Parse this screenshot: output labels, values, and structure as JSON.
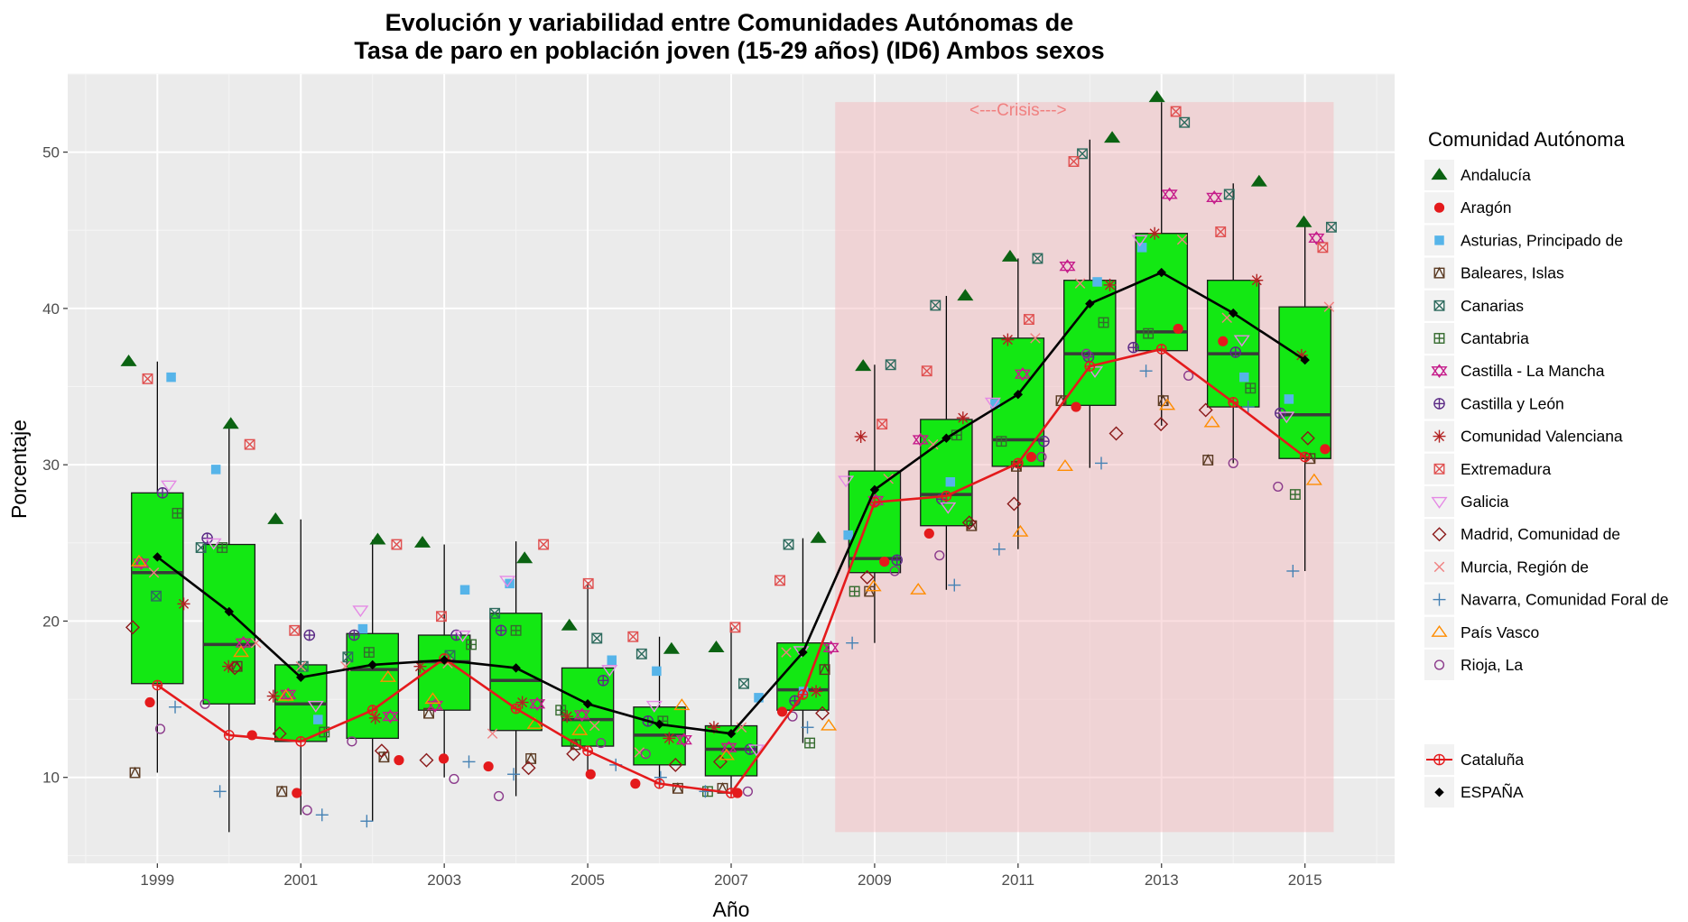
{
  "chart_data": {
    "type": "boxplot",
    "title": "Evolución y variabilidad entre Comunidades Autónomas de",
    "subtitle": "Tasa de paro en población joven (15-29 años) (ID6) Ambos sexos",
    "xlabel": "Año",
    "ylabel": "Porcentaje",
    "x_ticks": [
      "1999",
      "2001",
      "2003",
      "2005",
      "2007",
      "2009",
      "2011",
      "2013",
      "2015"
    ],
    "y_ticks": [
      "10",
      "20",
      "30",
      "40",
      "50"
    ],
    "xlim": [
      1997.75,
      2016.25
    ],
    "ylim": [
      4.5,
      55
    ],
    "grid": true,
    "annotation": {
      "text": "<---Crisis--->",
      "x_range": [
        2008.45,
        2015.4
      ],
      "y_range": [
        6.5,
        53.2
      ]
    },
    "years": [
      1999,
      2000,
      2001,
      2002,
      2003,
      2004,
      2005,
      2006,
      2007,
      2008,
      2009,
      2010,
      2011,
      2012,
      2013,
      2014,
      2015
    ],
    "boxes": [
      {
        "year": 1999,
        "lower_whisker": 10.3,
        "q1": 16.0,
        "median": 23.1,
        "q3": 28.2,
        "upper_whisker": 36.6
      },
      {
        "year": 2000,
        "lower_whisker": 6.5,
        "q1": 14.7,
        "median": 18.5,
        "q3": 24.9,
        "upper_whisker": 32.5
      },
      {
        "year": 2001,
        "lower_whisker": 7.6,
        "q1": 12.3,
        "median": 14.7,
        "q3": 17.2,
        "upper_whisker": 26.5
      },
      {
        "year": 2002,
        "lower_whisker": 7.2,
        "q1": 12.5,
        "median": 16.9,
        "q3": 19.2,
        "upper_whisker": 25.2
      },
      {
        "year": 2003,
        "lower_whisker": 10.0,
        "q1": 14.3,
        "median": 17.4,
        "q3": 19.1,
        "upper_whisker": 24.9
      },
      {
        "year": 2004,
        "lower_whisker": 8.8,
        "q1": 13.0,
        "median": 16.2,
        "q3": 20.5,
        "upper_whisker": 25.1
      },
      {
        "year": 2005,
        "lower_whisker": 10.3,
        "q1": 12.0,
        "median": 13.7,
        "q3": 17.0,
        "upper_whisker": 22.5
      },
      {
        "year": 2006,
        "lower_whisker": 9.3,
        "q1": 10.8,
        "median": 12.7,
        "q3": 14.5,
        "upper_whisker": 19.0
      },
      {
        "year": 2007,
        "lower_whisker": 8.8,
        "q1": 10.1,
        "median": 11.8,
        "q3": 13.3,
        "upper_whisker": 19.6
      },
      {
        "year": 2008,
        "lower_whisker": 12.2,
        "q1": 14.3,
        "median": 15.6,
        "q3": 18.6,
        "upper_whisker": 25.3
      },
      {
        "year": 2009,
        "lower_whisker": 18.6,
        "q1": 23.1,
        "median": 24.0,
        "q3": 29.6,
        "upper_whisker": 36.4
      },
      {
        "year": 2010,
        "lower_whisker": 22.0,
        "q1": 26.1,
        "median": 28.1,
        "q3": 32.9,
        "upper_whisker": 40.8
      },
      {
        "year": 2011,
        "lower_whisker": 24.6,
        "q1": 29.9,
        "median": 31.6,
        "q3": 38.1,
        "upper_whisker": 43.2
      },
      {
        "year": 2012,
        "lower_whisker": 29.8,
        "q1": 33.8,
        "median": 37.1,
        "q3": 41.8,
        "upper_whisker": 50.8
      },
      {
        "year": 2013,
        "lower_whisker": 32.5,
        "q1": 37.3,
        "median": 38.5,
        "q3": 44.8,
        "upper_whisker": 53.2
      },
      {
        "year": 2014,
        "lower_whisker": 30.1,
        "q1": 33.7,
        "median": 37.1,
        "q3": 41.8,
        "upper_whisker": 48.0
      },
      {
        "year": 2015,
        "lower_whisker": 23.2,
        "q1": 30.4,
        "median": 33.2,
        "q3": 40.1,
        "upper_whisker": 45.5
      }
    ],
    "lines": [
      {
        "name": "ESPAÑA",
        "color": "#000000",
        "marker": "diamond",
        "values": [
          24.1,
          20.6,
          16.4,
          17.2,
          17.5,
          17.0,
          14.7,
          13.4,
          12.8,
          18.0,
          28.4,
          31.7,
          34.5,
          40.3,
          42.3,
          39.7,
          36.7
        ]
      },
      {
        "name": "Cataluña",
        "color": "#e41a1c",
        "marker": "circle-plus",
        "values": [
          15.9,
          12.7,
          12.3,
          14.3,
          17.6,
          14.4,
          11.7,
          9.6,
          9.0,
          15.3,
          27.6,
          28.0,
          30.1,
          36.3,
          37.4,
          34.0,
          30.5
        ]
      }
    ],
    "legend_title": "Comunidad Autónoma",
    "legend": [
      {
        "name": "Andalucía",
        "shape": "triangle",
        "color": "#0b6312"
      },
      {
        "name": "Aragón",
        "shape": "circle-filled",
        "color": "#e41a1c"
      },
      {
        "name": "Asturias, Principado de",
        "shape": "square-filled",
        "color": "#56b4e9"
      },
      {
        "name": "Baleares, Islas",
        "shape": "square-triangle",
        "color": "#5a3a22"
      },
      {
        "name": "Canarias",
        "shape": "square-x",
        "color": "#2e6b5e"
      },
      {
        "name": "Cantabria",
        "shape": "square-plus",
        "color": "#356b2e"
      },
      {
        "name": "Castilla - La Mancha",
        "shape": "star-david",
        "color": "#c51b8a"
      },
      {
        "name": "Castilla y León",
        "shape": "circle-plus",
        "color": "#5b2a86"
      },
      {
        "name": "Comunidad Valenciana",
        "shape": "asterisk",
        "color": "#b22222"
      },
      {
        "name": "Extremadura",
        "shape": "square-x",
        "color": "#e05050"
      },
      {
        "name": "Galicia",
        "shape": "triangle-down",
        "color": "#e58ae5"
      },
      {
        "name": "Madrid, Comunidad de",
        "shape": "diamond-open",
        "color": "#8b1a1a"
      },
      {
        "name": "Murcia, Región de",
        "shape": "x",
        "color": "#f08080"
      },
      {
        "name": "Navarra, Comunidad Foral de",
        "shape": "plus",
        "color": "#4682b4"
      },
      {
        "name": "País Vasco",
        "shape": "triangle-open",
        "color": "#ff8c00"
      },
      {
        "name": "Rioja, La",
        "shape": "circle-open",
        "color": "#8b3a8b"
      }
    ],
    "legend_extra": [
      {
        "name": "Cataluña",
        "shape": "circle-plus",
        "color": "#e41a1c"
      },
      {
        "name": "ESPAÑA",
        "shape": "diamond-filled",
        "color": "#000000"
      }
    ],
    "region_points": {
      "Andalucía": [
        36.6,
        32.6,
        26.5,
        25.2,
        25.0,
        24.0,
        19.7,
        18.2,
        18.3,
        25.3,
        36.3,
        40.8,
        43.3,
        50.9,
        53.5,
        48.1,
        45.5
      ],
      "Aragón": [
        14.8,
        12.7,
        9.0,
        11.1,
        11.2,
        10.7,
        10.2,
        9.6,
        9.0,
        14.2,
        23.8,
        25.6,
        30.5,
        33.7,
        38.7,
        37.9,
        31.0
      ],
      "Asturias, Principado de": [
        35.6,
        29.7,
        13.7,
        19.5,
        22.0,
        22.4,
        17.5,
        16.8,
        15.1,
        15.5,
        25.5,
        28.9,
        33.9,
        41.7,
        43.9,
        35.6,
        34.2
      ],
      "Baleares, Islas": [
        10.3,
        17.1,
        9.1,
        11.3,
        14.1,
        11.2,
        12.1,
        9.3,
        9.3,
        16.9,
        21.9,
        26.1,
        29.9,
        34.1,
        34.1,
        30.3,
        30.4
      ],
      "Canarias": [
        21.6,
        24.7,
        17.1,
        17.7,
        17.8,
        20.5,
        18.9,
        17.9,
        16.0,
        24.9,
        36.4,
        40.2,
        43.2,
        49.9,
        51.9,
        47.3,
        45.2
      ],
      "Cantabria": [
        26.9,
        24.7,
        12.9,
        18.0,
        18.5,
        19.4,
        14.3,
        13.6,
        9.1,
        12.2,
        21.9,
        31.9,
        31.5,
        39.1,
        38.4,
        34.9,
        28.1
      ],
      "Castilla - La Mancha": [
        23.7,
        18.6,
        15.3,
        13.9,
        14.6,
        14.7,
        14.0,
        12.4,
        11.9,
        18.3,
        27.7,
        31.6,
        35.8,
        42.7,
        47.3,
        47.1,
        44.5
      ],
      "Castilla y León": [
        28.2,
        25.3,
        19.1,
        19.1,
        19.1,
        19.4,
        16.2,
        13.6,
        11.8,
        14.9,
        23.9,
        27.8,
        31.5,
        36.9,
        37.5,
        37.2,
        33.3
      ],
      "Comunidad Valenciana": [
        21.1,
        17.1,
        15.2,
        13.8,
        17.1,
        14.8,
        13.9,
        12.5,
        13.2,
        15.5,
        31.8,
        33.0,
        38.0,
        41.5,
        44.8,
        41.8,
        37.0
      ],
      "Extremadura": [
        35.5,
        31.3,
        19.4,
        24.9,
        20.3,
        24.9,
        22.4,
        19.0,
        19.6,
        22.6,
        32.6,
        36.0,
        39.3,
        49.4,
        52.6,
        44.9,
        43.9
      ],
      "Galicia": [
        28.7,
        25.0,
        14.6,
        20.7,
        19.1,
        22.6,
        16.9,
        14.6,
        11.8,
        18.1,
        29.0,
        27.3,
        34.0,
        36.0,
        44.4,
        38.0,
        33.1
      ],
      "Madrid, Comunidad de": [
        19.6,
        17.0,
        12.8,
        11.7,
        11.1,
        10.6,
        11.5,
        10.8,
        11.0,
        14.1,
        22.8,
        26.3,
        27.5,
        32.0,
        32.6,
        33.5,
        31.7
      ],
      "Murcia, Región de": [
        23.1,
        18.6,
        17.1,
        17.1,
        17.3,
        12.8,
        13.3,
        11.6,
        13.2,
        18.0,
        29.1,
        31.3,
        38.1,
        41.6,
        44.4,
        39.4,
        40.1
      ],
      "Navarra, Comunidad Foral de": [
        14.5,
        9.1,
        7.6,
        7.2,
        11.0,
        10.2,
        10.8,
        10.0,
        9.1,
        13.2,
        18.6,
        22.3,
        24.6,
        30.1,
        36.0,
        33.7,
        23.2
      ],
      "País Vasco": [
        23.8,
        18.0,
        15.2,
        16.4,
        15.0,
        13.4,
        13.0,
        14.6,
        11.4,
        13.3,
        22.2,
        22.0,
        25.7,
        29.9,
        33.8,
        32.7,
        29.0
      ],
      "Rioja, La": [
        13.1,
        14.7,
        7.9,
        12.3,
        9.9,
        8.8,
        12.2,
        11.5,
        9.1,
        13.9,
        23.2,
        24.2,
        30.5,
        37.1,
        35.7,
        30.1,
        28.6
      ]
    }
  }
}
